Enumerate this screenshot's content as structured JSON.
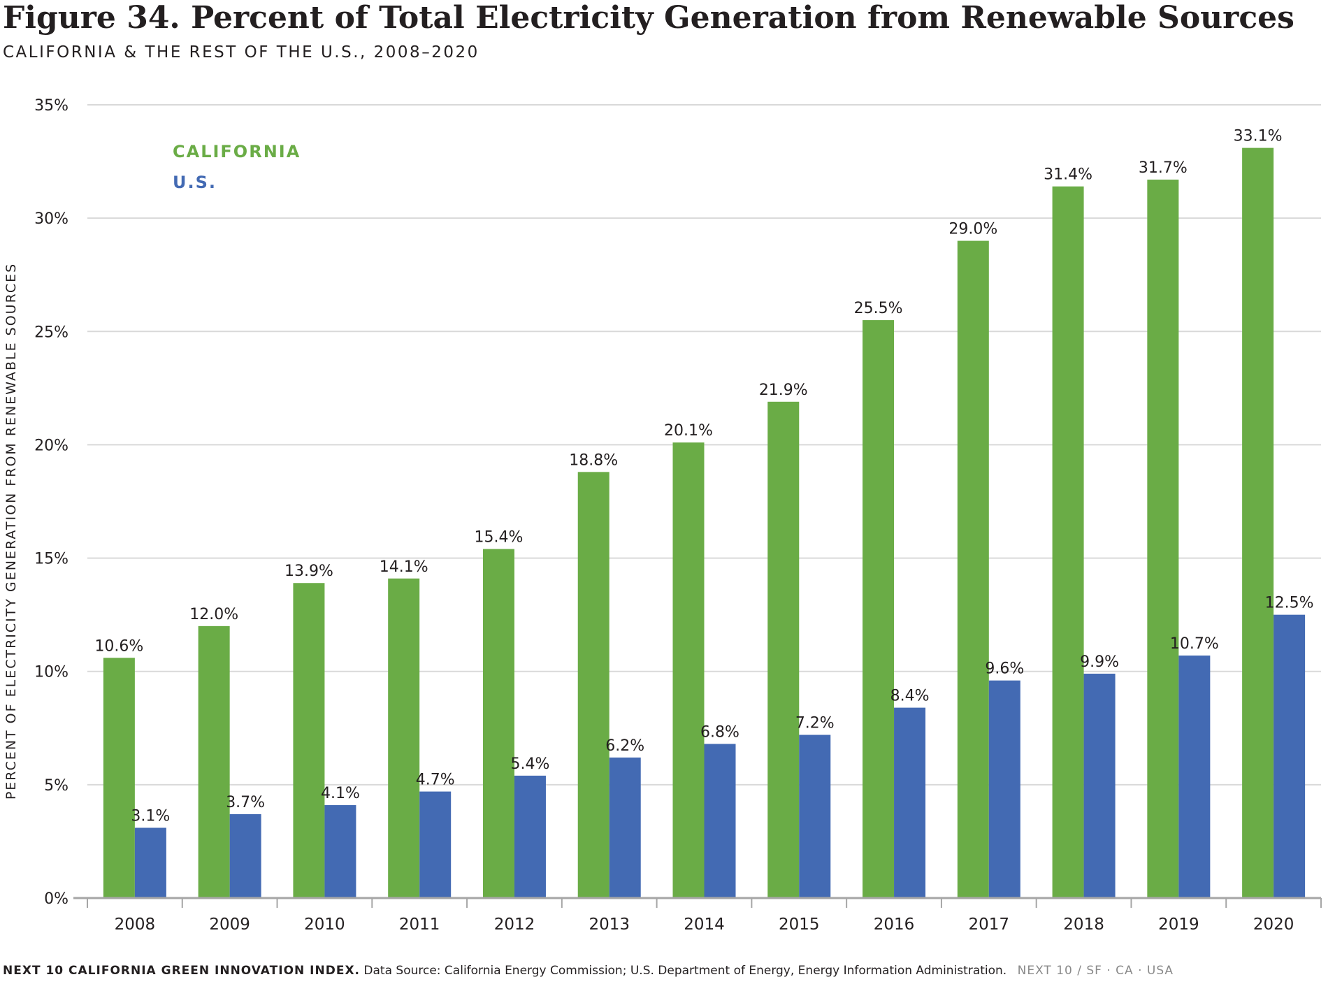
{
  "title": "Figure 34. Percent of Total Electricity Generation from Renewable Sources",
  "subtitle": "CALIFORNIA & THE REST OF THE U.S., 2008–2020",
  "footer": {
    "brand": "NEXT 10 CALIFORNIA GREEN INNOVATION INDEX.",
    "source": "Data Source: California Energy Commission; U.S. Department of Energy, Energy Information Administration.",
    "tag": "NEXT 10  /  SF · CA · USA"
  },
  "colors": {
    "california": "#6aac46",
    "us": "#436ab3",
    "grid": "#d9d9d9",
    "axis": "#a6a6a6"
  },
  "chart_data": {
    "type": "bar",
    "ylabel": "PERCENT OF ELECTRICITY GENERATION FROM RENEWABLE SOURCES",
    "xlabel": "",
    "ylim": [
      0,
      35
    ],
    "yticks": [
      0,
      5,
      10,
      15,
      20,
      25,
      30,
      35
    ],
    "ytick_labels": [
      "0%",
      "5%",
      "10%",
      "15%",
      "20%",
      "25%",
      "30%",
      "35%"
    ],
    "grid": true,
    "legend_position": "top-left",
    "categories": [
      "2008",
      "2009",
      "2010",
      "2011",
      "2012",
      "2013",
      "2014",
      "2015",
      "2016",
      "2017",
      "2018",
      "2019",
      "2020"
    ],
    "series": [
      {
        "name": "CALIFORNIA",
        "color": "#6aac46",
        "values": [
          10.6,
          12.0,
          13.9,
          14.1,
          15.4,
          18.8,
          20.1,
          21.9,
          25.5,
          29.0,
          31.4,
          31.7,
          33.1
        ],
        "labels": [
          "10.6%",
          "12.0%",
          "13.9%",
          "14.1%",
          "15.4%",
          "18.8%",
          "20.1%",
          "21.9%",
          "25.5%",
          "29.0%",
          "31.4%",
          "31.7%",
          "33.1%"
        ]
      },
      {
        "name": "U.S.",
        "color": "#436ab3",
        "values": [
          3.1,
          3.7,
          4.1,
          4.7,
          5.4,
          6.2,
          6.8,
          7.2,
          8.4,
          9.6,
          9.9,
          10.7,
          12.5
        ],
        "labels": [
          "3.1%",
          "3.7%",
          "4.1%",
          "4.7%",
          "5.4%",
          "6.2%",
          "6.8%",
          "7.2%",
          "8.4%",
          "9.6%",
          "9.9%",
          "10.7%",
          "12.5%"
        ]
      }
    ]
  }
}
